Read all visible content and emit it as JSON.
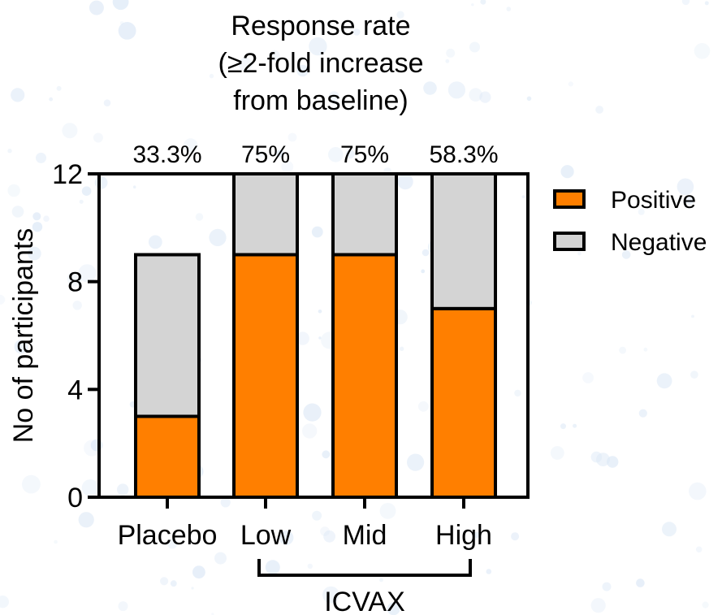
{
  "chart_data": {
    "type": "bar",
    "stacked": true,
    "title": [
      "Response rate",
      "(≥2-fold increase",
      "from baseline)"
    ],
    "ylabel": "No of participants",
    "xlabel": "",
    "ylim": [
      0,
      12
    ],
    "yticks": [
      0,
      4,
      8,
      12
    ],
    "categories": [
      "Placebo",
      "Low",
      "Mid",
      "High"
    ],
    "group_bracket": {
      "label": "ICVAX",
      "from": "Low",
      "to": "High"
    },
    "series": [
      {
        "name": "Positive",
        "color": "#ff7f00",
        "values": [
          3,
          9,
          9,
          7
        ]
      },
      {
        "name": "Negative",
        "color": "#d4d4d4",
        "values": [
          6,
          3,
          3,
          5
        ]
      }
    ],
    "annotations": [
      "33.3%",
      "75%",
      "75%",
      "58.3%"
    ],
    "legend_position": "right",
    "grid": false
  }
}
